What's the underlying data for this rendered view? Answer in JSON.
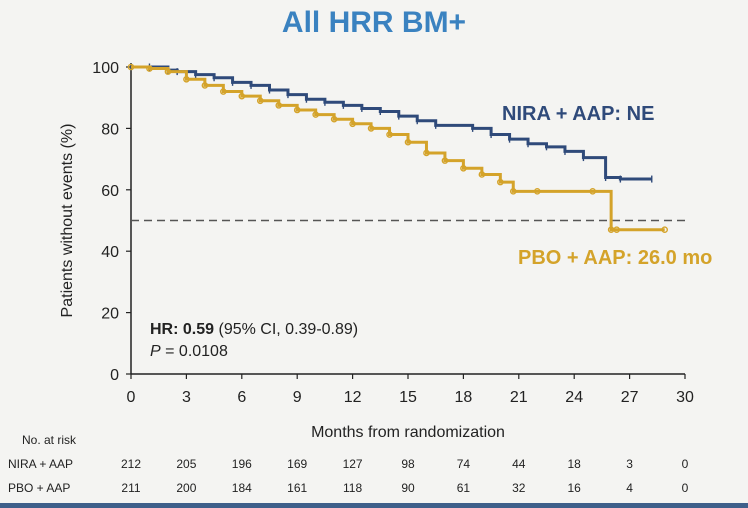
{
  "title": "All HRR BM+",
  "colors": {
    "title": "#3a82c0",
    "nira": "#2f4a7a",
    "pbo": "#d4a32a",
    "reference": "#555555"
  },
  "annotation": {
    "hr_label": "HR: 0.59",
    "hr_ci": "(95% CI, 0.39-0.89)",
    "p_label": "P",
    "p_value": "= 0.0108"
  },
  "risk_table": {
    "title": "No. at risk",
    "rows": [
      {
        "label": "NIRA + AAP",
        "values": [
          "212",
          "205",
          "196",
          "169",
          "127",
          "98",
          "74",
          "44",
          "18",
          "3",
          "0"
        ]
      },
      {
        "label": "PBO + AAP",
        "values": [
          "211",
          "200",
          "184",
          "161",
          "118",
          "90",
          "61",
          "32",
          "16",
          "4",
          "0"
        ]
      }
    ]
  },
  "chart_data": {
    "type": "line",
    "xlabel": "Months from randomization",
    "ylabel": "Patients without events (%)",
    "xlim": [
      0,
      30
    ],
    "ylim": [
      0,
      100
    ],
    "xticks": [
      0,
      3,
      6,
      9,
      12,
      15,
      18,
      21,
      24,
      27,
      30
    ],
    "yticks": [
      0,
      20,
      40,
      60,
      80,
      100
    ],
    "reference_line": {
      "y": 50,
      "style": "dashed"
    },
    "series": [
      {
        "name": "NIRA + AAP: NE",
        "color": "#2f4a7a",
        "x": [
          0,
          1,
          2,
          2.5,
          3.5,
          4.5,
          5.5,
          6.5,
          7.5,
          8.5,
          9.5,
          10.5,
          11.5,
          12.5,
          13.5,
          14.5,
          15.5,
          16.5,
          18.5,
          19.5,
          20.5,
          21.5,
          22.5,
          23.5,
          24.5,
          25.7,
          26.5,
          28.2
        ],
        "y": [
          100,
          100,
          99,
          98.5,
          97.5,
          96.5,
          95,
          94,
          92.5,
          91,
          89.5,
          88.5,
          87.5,
          86.5,
          85.5,
          84,
          82.5,
          81,
          80,
          78,
          76.5,
          75,
          74,
          72.5,
          70.5,
          64,
          63.5,
          63.5
        ]
      },
      {
        "name": "PBO + AAP: 26.0 mo",
        "color": "#d4a32a",
        "x": [
          0,
          1,
          2,
          3,
          4,
          5,
          6,
          7,
          8,
          9,
          10,
          11,
          12,
          13,
          14,
          15,
          16,
          17,
          18,
          19,
          20,
          20.7,
          22,
          25,
          26,
          26.3,
          28.9
        ],
        "y": [
          100,
          99.5,
          98.5,
          96,
          94,
          92,
          90.5,
          89,
          87.5,
          86,
          84.5,
          83,
          81.5,
          80,
          78,
          75.5,
          72,
          69.5,
          67,
          65,
          62.5,
          59.5,
          59.5,
          59.5,
          47,
          47,
          47
        ]
      }
    ]
  }
}
